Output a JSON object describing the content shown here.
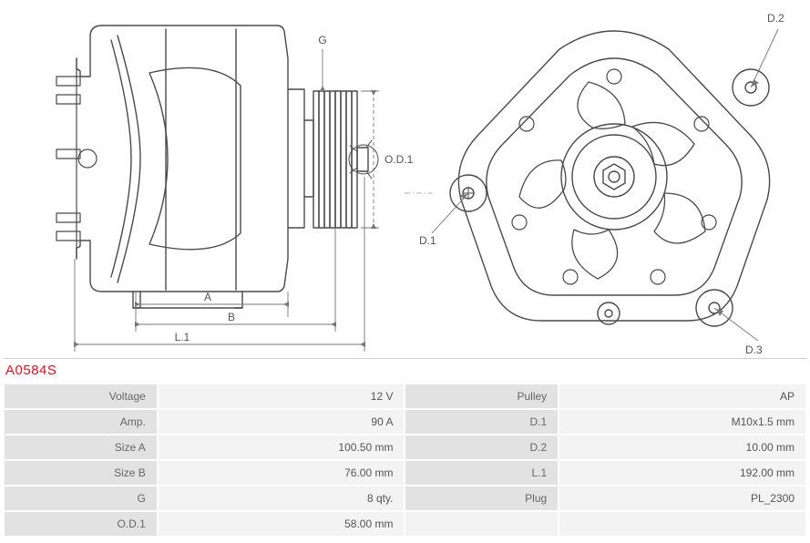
{
  "part_number": "A0584S",
  "diagram": {
    "stroke": "#4a4a4a",
    "stroke_thin": "#777777",
    "text_color": "#555555",
    "labels": {
      "A": "A",
      "B": "B",
      "L1": "L.1",
      "G": "G",
      "OD1": "O.D.1",
      "D1": "D.1",
      "D2": "D.2",
      "D3": "D.3"
    }
  },
  "specs": {
    "left": [
      {
        "label": "Voltage",
        "value": "12 V"
      },
      {
        "label": "Amp.",
        "value": "90 A"
      },
      {
        "label": "Size A",
        "value": "100.50 mm"
      },
      {
        "label": "Size B",
        "value": "76.00 mm"
      },
      {
        "label": "G",
        "value": "8 qty."
      },
      {
        "label": "O.D.1",
        "value": "58.00 mm"
      }
    ],
    "right": [
      {
        "label": "Pulley",
        "value": "AP"
      },
      {
        "label": "D.1",
        "value": "M10x1.5 mm"
      },
      {
        "label": "D.2",
        "value": "10.00 mm"
      },
      {
        "label": "L.1",
        "value": "192.00 mm"
      },
      {
        "label": "Plug",
        "value": "PL_2300"
      }
    ]
  },
  "table_style": {
    "label_bg": "#e2e2e2",
    "value_bg": "#f3f3f3",
    "border": "#ffffff",
    "font_size": 12,
    "text_color": "#555555"
  }
}
